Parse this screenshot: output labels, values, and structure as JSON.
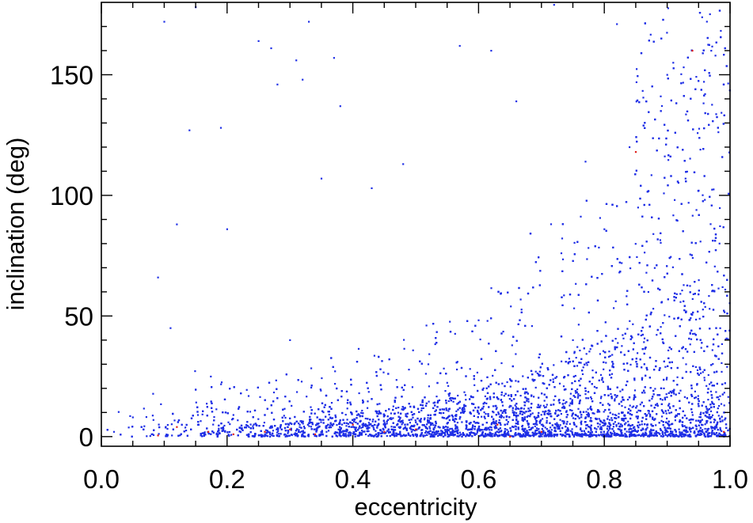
{
  "chart_data": {
    "type": "scatter",
    "title": "",
    "xlabel": "eccentricity",
    "ylabel": "inclination (deg)",
    "xlim": [
      0.0,
      1.0
    ],
    "ylim": [
      -4,
      180
    ],
    "x_ticks": [
      "0.0",
      "0.2",
      "0.4",
      "0.6",
      "0.8",
      "1.0"
    ],
    "x_tick_values": [
      0.0,
      0.2,
      0.4,
      0.6,
      0.8,
      1.0
    ],
    "y_ticks": [
      "0",
      "50",
      "100",
      "150"
    ],
    "y_tick_values": [
      0,
      50,
      100,
      150
    ],
    "grid": false,
    "legend": "none",
    "series": [
      {
        "color": "#1f2fe6",
        "marker": "dot",
        "distribution": "approx. 9000 points; density concentrated at low inclination (0-20 deg) for eccentricity 0.2-0.75, spreading to high inclination (up to 180 deg) increasingly as eccentricity approaches 1.0",
        "points": [
          [
            0.02,
            2
          ],
          [
            0.05,
            8
          ],
          [
            0.08,
            1
          ],
          [
            0.09,
            66
          ],
          [
            0.1,
            172
          ],
          [
            0.11,
            45
          ],
          [
            0.12,
            88
          ],
          [
            0.14,
            127
          ],
          [
            0.15,
            178
          ],
          [
            0.19,
            128
          ],
          [
            0.2,
            86
          ],
          [
            0.21,
            9
          ],
          [
            0.25,
            164
          ],
          [
            0.27,
            161
          ],
          [
            0.28,
            146
          ],
          [
            0.3,
            40
          ],
          [
            0.31,
            156
          ],
          [
            0.32,
            148
          ],
          [
            0.33,
            172
          ],
          [
            0.35,
            107
          ],
          [
            0.37,
            157
          ],
          [
            0.38,
            137
          ],
          [
            0.41,
            18
          ],
          [
            0.43,
            103
          ],
          [
            0.45,
            5
          ],
          [
            0.48,
            113
          ],
          [
            0.5,
            1
          ],
          [
            0.52,
            30
          ],
          [
            0.55,
            3
          ],
          [
            0.57,
            162
          ],
          [
            0.6,
            12
          ],
          [
            0.62,
            160
          ],
          [
            0.64,
            8
          ],
          [
            0.66,
            139
          ],
          [
            0.7,
            5
          ],
          [
            0.72,
            179
          ],
          [
            0.75,
            40
          ],
          [
            0.77,
            114
          ],
          [
            0.8,
            86
          ],
          [
            0.82,
            171
          ],
          [
            0.84,
            120
          ],
          [
            0.87,
            60
          ],
          [
            0.9,
            150
          ],
          [
            0.93,
            30
          ],
          [
            0.95,
            102
          ],
          [
            0.97,
            160
          ],
          [
            0.99,
            10
          ]
        ]
      },
      {
        "color": "#e0201a",
        "marker": "dot",
        "distribution": "sparse red points, mostly at low inclination",
        "points": [
          [
            0.09,
            0.5
          ],
          [
            0.12,
            4
          ],
          [
            0.17,
            2
          ],
          [
            0.21,
            1
          ],
          [
            0.26,
            2
          ],
          [
            0.3,
            3
          ],
          [
            0.34,
            1
          ],
          [
            0.4,
            5
          ],
          [
            0.45,
            2
          ],
          [
            0.5,
            3
          ],
          [
            0.63,
            5
          ],
          [
            0.65,
            0
          ],
          [
            0.7,
            2
          ],
          [
            0.85,
            118
          ],
          [
            0.94,
            160
          ],
          [
            0.99,
            2
          ]
        ]
      }
    ]
  }
}
